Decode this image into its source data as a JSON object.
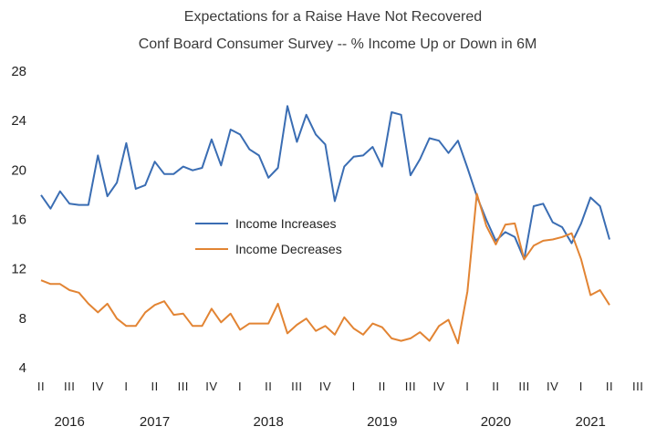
{
  "chart_data": {
    "type": "line",
    "title": "Expectations for a Raise Have Not Recovered",
    "subtitle": "Conf Board Consumer Survey -- % Income Up or Down in 6M",
    "xlabel": "",
    "ylabel": "",
    "ylim": [
      4,
      28
    ],
    "yticks": [
      4,
      8,
      12,
      16,
      20,
      24,
      28
    ],
    "grid": false,
    "legend_placement": "center",
    "x_range": [
      "2016-05",
      "2021-05"
    ],
    "quarter_ticks": [
      "II",
      "III",
      "IV",
      "I",
      "II",
      "III",
      "IV",
      "I",
      "II",
      "III",
      "IV",
      "I",
      "II",
      "III",
      "IV",
      "I",
      "II",
      "III",
      "IV",
      "I",
      "II",
      "III",
      "IV",
      "I",
      "II",
      "III"
    ],
    "year_labels": [
      {
        "label": "2016",
        "month": "2016-08"
      },
      {
        "label": "2017",
        "month": "2017-05"
      },
      {
        "label": "2018",
        "month": "2018-05"
      },
      {
        "label": "2019",
        "month": "2019-05"
      },
      {
        "label": "2020",
        "month": "2020-05"
      },
      {
        "label": "2021",
        "month": "2021-03"
      }
    ],
    "series": [
      {
        "name": "Income Increases",
        "color": "#3a6db3",
        "start": "2016-05",
        "values": [
          17.9,
          16.8,
          18.2,
          17.2,
          17.1,
          17.1,
          21.1,
          17.8,
          18.9,
          22.1,
          18.4,
          18.7,
          20.6,
          19.6,
          19.6,
          20.2,
          19.9,
          20.1,
          22.4,
          20.3,
          23.2,
          22.8,
          21.6,
          21.1,
          19.3,
          20.1,
          25.1,
          22.2,
          24.4,
          22.8,
          22.0,
          17.4,
          20.2,
          21.0,
          21.1,
          21.8,
          20.2,
          24.6,
          24.4,
          19.5,
          20.8,
          22.5,
          22.3,
          21.3,
          22.3,
          20.1,
          17.8,
          15.9,
          14.2,
          14.9,
          14.5,
          12.7,
          17.0,
          17.2,
          15.7,
          15.3,
          14.0,
          15.6,
          17.7,
          17.0,
          14.3
        ]
      },
      {
        "name": "Income Decreases",
        "color": "#e28433",
        "start": "2016-05",
        "values": [
          11.0,
          10.7,
          10.7,
          10.2,
          10.0,
          9.1,
          8.4,
          9.1,
          7.9,
          7.3,
          7.3,
          8.4,
          9.0,
          9.3,
          8.2,
          8.3,
          7.3,
          7.3,
          8.7,
          7.6,
          8.3,
          7.0,
          7.5,
          7.5,
          7.5,
          9.1,
          6.7,
          7.4,
          7.9,
          6.9,
          7.3,
          6.6,
          8.0,
          7.1,
          6.6,
          7.5,
          7.2,
          6.3,
          6.1,
          6.3,
          6.8,
          6.1,
          7.3,
          7.8,
          5.9,
          10.1,
          18.0,
          15.4,
          13.9,
          15.5,
          15.6,
          12.7,
          13.8,
          14.2,
          14.3,
          14.5,
          14.8,
          12.7,
          9.8,
          10.2,
          9.0
        ]
      }
    ]
  }
}
